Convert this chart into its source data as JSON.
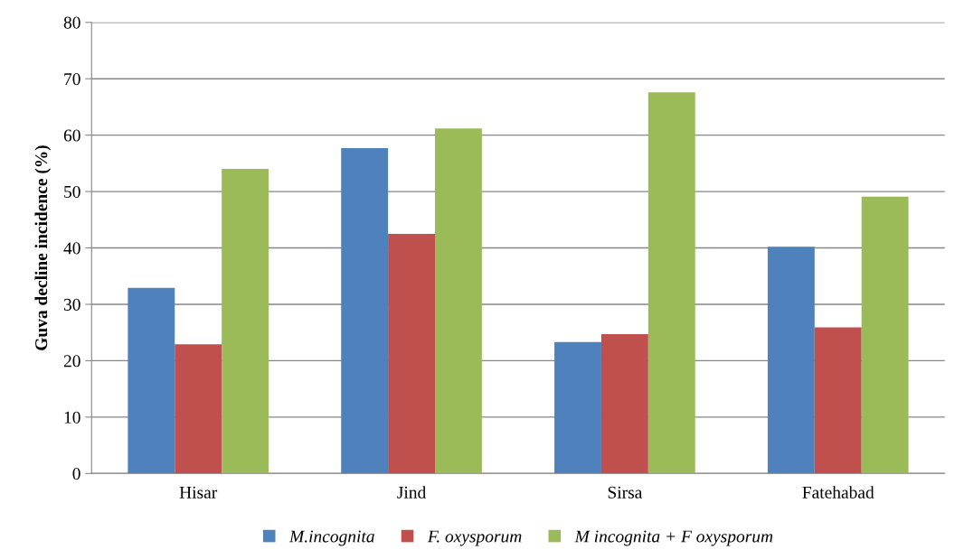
{
  "chart_data": {
    "type": "bar",
    "ylabel": "Guva decline incidence (%)",
    "categories": [
      "Hisar",
      "Jind",
      "Sirsa",
      "Fatehabad"
    ],
    "series": [
      {
        "name": "M.incognita",
        "color": "#4f81bd",
        "values": [
          32.9,
          57.7,
          23.3,
          40.2
        ]
      },
      {
        "name": "F. oxysporum",
        "color": "#c0504d",
        "values": [
          22.9,
          42.5,
          24.7,
          25.9
        ]
      },
      {
        "name": "M incognita + F oxysporum",
        "color": "#9bbb59",
        "values": [
          54.0,
          61.2,
          67.6,
          49.1
        ]
      }
    ],
    "ylim": [
      0,
      80
    ],
    "yticks": [
      0,
      10,
      20,
      30,
      40,
      50,
      60,
      70,
      80
    ],
    "grid": "y",
    "legend": "bottom"
  }
}
